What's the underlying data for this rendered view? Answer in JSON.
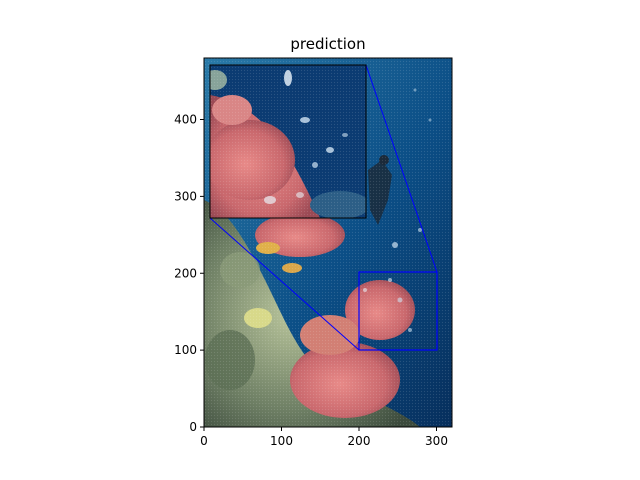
{
  "figure": {
    "title": "prediction"
  },
  "axes": {
    "x_ticks": [
      "0",
      "100",
      "200",
      "300"
    ],
    "y_ticks": [
      "0",
      "100",
      "200",
      "300",
      "400"
    ],
    "xlim": [
      0,
      320
    ],
    "ylim": [
      0,
      480
    ]
  },
  "zoom": {
    "source_region": {
      "x": [
        200,
        300
      ],
      "y": [
        100,
        200
      ]
    },
    "inset_region": {
      "x": [
        8,
        208
      ],
      "y": [
        270,
        470
      ]
    },
    "line_color": "#0000ff"
  },
  "image": {
    "description_colors": {
      "water_light": "#1e6a9b",
      "water_deep": "#073566",
      "coral_pink": "#d9797a",
      "coral_orange": "#d9a64a",
      "reef_green": "#7f8f72"
    }
  }
}
